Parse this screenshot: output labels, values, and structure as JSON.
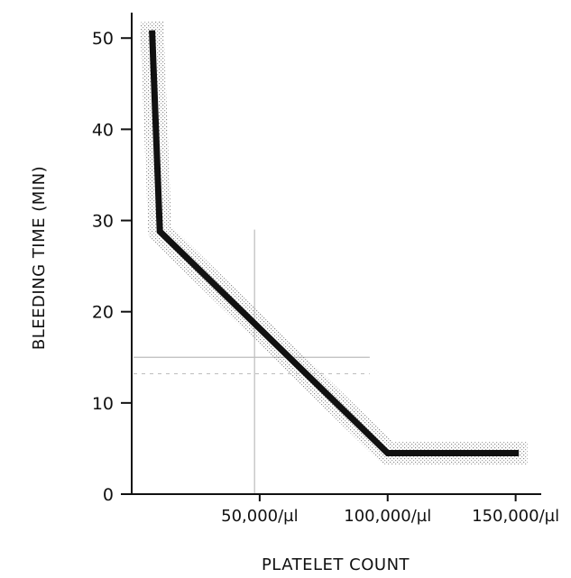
{
  "chart_data": {
    "type": "line",
    "title": "",
    "xlabel": "PLATELET COUNT",
    "ylabel": "BLEEDING TIME (MIN)",
    "x_tick_labels": [
      "50,000/µl",
      "100,000/µl",
      "150,000/µl"
    ],
    "x_tick_values": [
      50000,
      100000,
      150000
    ],
    "y_tick_labels": [
      "0",
      "10",
      "20",
      "30",
      "40",
      "50"
    ],
    "y_tick_values": [
      0,
      10,
      20,
      30,
      40,
      50
    ],
    "xlim": [
      0,
      160000
    ],
    "ylim": [
      0,
      52
    ],
    "grid": false,
    "series": [
      {
        "x": [
          8000,
          11000,
          100000,
          150000
        ],
        "y": [
          50.5,
          28.8,
          4.5,
          4.5
        ],
        "band": 1.2
      }
    ],
    "reference_lines": [
      {
        "orientation": "vertical",
        "x": 48000,
        "style": "faint"
      },
      {
        "orientation": "horizontal",
        "y": 15,
        "style": "faint"
      },
      {
        "orientation": "horizontal",
        "y": 13.2,
        "style": "faint-dashed"
      }
    ],
    "colors": {
      "line": "#111111",
      "band": "#8a8a8a",
      "axis": "#111111",
      "reference": "#bdbdbd"
    }
  }
}
